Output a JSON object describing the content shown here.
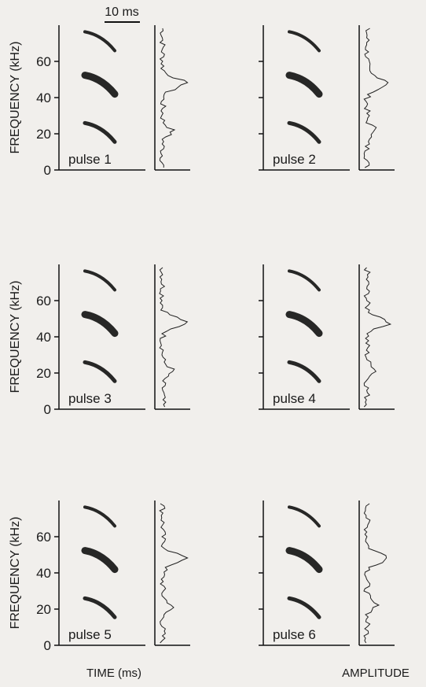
{
  "figure": {
    "scale_bar": "10 ms",
    "y_label": "FREQUENCY (kHz)",
    "x_label": "TIME (ms)",
    "amplitude_label": "AMPLITUDE",
    "ylim": [
      0,
      80
    ],
    "yticks": [
      0,
      20,
      40,
      60
    ],
    "panels": [
      {
        "label": "pulse 1"
      },
      {
        "label": "pulse 2"
      },
      {
        "label": "pulse 3"
      },
      {
        "label": "pulse 4"
      },
      {
        "label": "pulse 5"
      },
      {
        "label": "pulse 6"
      }
    ]
  }
}
